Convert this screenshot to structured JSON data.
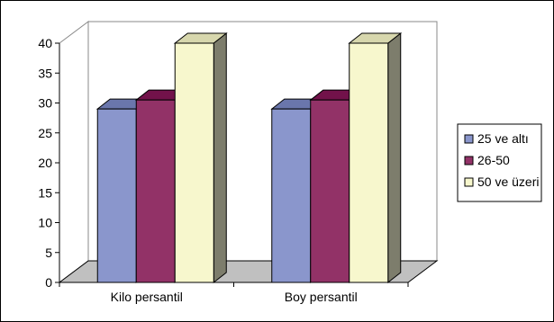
{
  "chart_data": {
    "type": "bar",
    "categories": [
      "Kilo persantil",
      "Boy persantil"
    ],
    "series": [
      {
        "name": "25 ve altı",
        "values": [
          29,
          29
        ]
      },
      {
        "name": "26-50",
        "values": [
          30.5,
          30.5
        ]
      },
      {
        "name": "50 ve üzeri",
        "values": [
          40,
          40
        ]
      }
    ],
    "ylim": [
      0,
      40
    ],
    "yticks": [
      "0",
      "5",
      "10",
      "15",
      "20",
      "25",
      "30",
      "35",
      "40"
    ],
    "title": "",
    "xlabel": "",
    "ylabel": "",
    "legend": "right",
    "grid": false,
    "colors": {
      "series_front": [
        "#8a96cc",
        "#923267",
        "#f7f7cd"
      ],
      "series_top": [
        "#6a76ac",
        "#72124a",
        "#d7d7ad"
      ],
      "series_side": [
        "#7d7d6c",
        "#7d7d6c",
        "#7d7d6c"
      ],
      "floor": "#c0c0c0"
    }
  }
}
